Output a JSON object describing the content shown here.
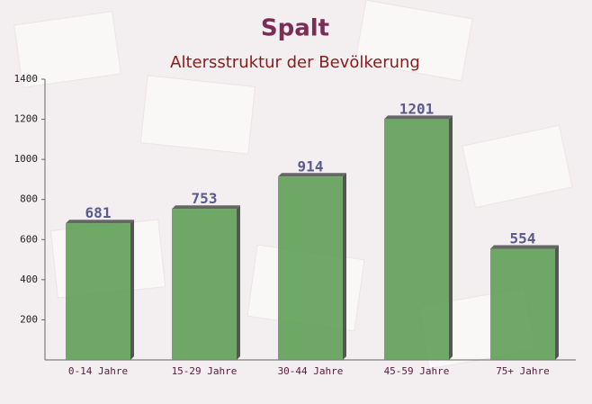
{
  "chart_data": {
    "type": "bar",
    "title": "Spalt",
    "subtitle": "Altersstruktur der Bevölkerung",
    "categories": [
      "0-14 Jahre",
      "15-29 Jahre",
      "30-44 Jahre",
      "45-59 Jahre",
      "75+ Jahre"
    ],
    "values": [
      681,
      753,
      914,
      1201,
      554
    ],
    "color": "#5f9e57",
    "ylim": [
      0,
      1400
    ],
    "yticks": [
      200,
      400,
      600,
      800,
      1000,
      1200,
      1400
    ],
    "grid": false
  }
}
